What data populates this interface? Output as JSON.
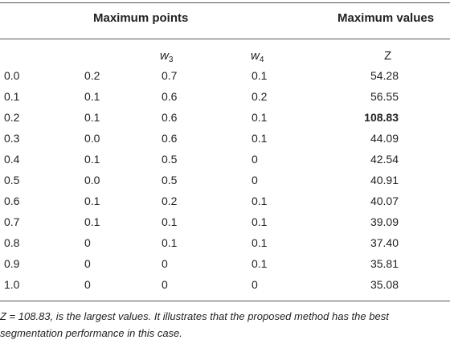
{
  "header": {
    "left_group": "Maximum points",
    "right_group": "Maximum values"
  },
  "subheader": {
    "w3_base": "w",
    "w3_sub": "3",
    "w4_base": "w",
    "w4_sub": "4",
    "z": "Z"
  },
  "rows": [
    [
      "0.0",
      "0.2",
      "0.7",
      "0.1",
      "54.28"
    ],
    [
      "0.1",
      "0.1",
      "0.6",
      "0.2",
      "56.55"
    ],
    [
      "0.2",
      "0.1",
      "0.6",
      "0.1",
      "108.83"
    ],
    [
      "0.3",
      "0.0",
      "0.6",
      "0.1",
      "44.09"
    ],
    [
      "0.4",
      "0.1",
      "0.5",
      "0",
      "42.54"
    ],
    [
      "0.5",
      "0.0",
      "0.5",
      "0",
      "40.91"
    ],
    [
      "0.6",
      "0.1",
      "0.2",
      "0.1",
      "40.07"
    ],
    [
      "0.7",
      "0.1",
      "0.1",
      "0.1",
      "39.09"
    ],
    [
      "0.8",
      "0",
      "0.1",
      "0.1",
      "37.40"
    ],
    [
      "0.9",
      "0",
      "0",
      "0.1",
      "35.81"
    ],
    [
      "1.0",
      "0",
      "0",
      "0",
      "35.08"
    ]
  ],
  "highlight_row": 2,
  "footnote": "Z = 108.83, is the largest values. It illustrates that the proposed method has the best segmentation performance in this case."
}
